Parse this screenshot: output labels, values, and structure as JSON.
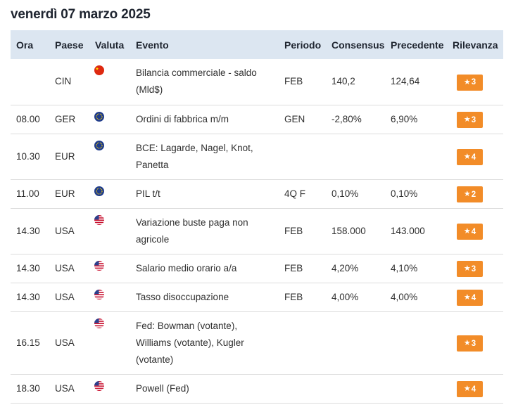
{
  "date_title": "venerdì 07 marzo 2025",
  "columns": {
    "ora": "Ora",
    "paese": "Paese",
    "valuta": "Valuta",
    "evento": "Evento",
    "periodo": "Periodo",
    "consensus": "Consensus",
    "precedente": "Precedente",
    "rilevanza": "Rilevanza"
  },
  "rows": [
    {
      "ora": "",
      "paese": "CIN",
      "flag": "china-flag-icon",
      "evento_lines": [
        "Bilancia commerciale - saldo",
        "(Mld$)"
      ],
      "periodo": "FEB",
      "consensus": "140,2",
      "precedente": "124,64",
      "rilevanza": "3"
    },
    {
      "ora": "08.00",
      "paese": "GER",
      "flag": "eu-flag-icon",
      "evento_lines": [
        "Ordini di fabbrica m/m"
      ],
      "periodo": "GEN",
      "consensus": "-2,80%",
      "precedente": "6,90%",
      "rilevanza": "3"
    },
    {
      "ora": "10.30",
      "paese": "EUR",
      "flag": "eu-flag-icon",
      "evento_lines": [
        "BCE: Lagarde, Nagel, Knot,",
        "Panetta"
      ],
      "periodo": "",
      "consensus": "",
      "precedente": "",
      "rilevanza": "4"
    },
    {
      "ora": "11.00",
      "paese": "EUR",
      "flag": "eu-flag-icon",
      "evento_lines": [
        "PIL t/t"
      ],
      "periodo": "4Q F",
      "consensus": "0,10%",
      "precedente": "0,10%",
      "rilevanza": "2"
    },
    {
      "ora": "14.30",
      "paese": "USA",
      "flag": "us-flag-icon",
      "evento_lines": [
        "Variazione buste paga non",
        "agricole"
      ],
      "periodo": "FEB",
      "consensus": "158.000",
      "precedente": "143.000",
      "rilevanza": "4"
    },
    {
      "ora": "14.30",
      "paese": "USA",
      "flag": "us-flag-icon",
      "evento_lines": [
        "Salario medio orario a/a"
      ],
      "periodo": "FEB",
      "consensus": "4,20%",
      "precedente": "4,10%",
      "rilevanza": "3"
    },
    {
      "ora": "14.30",
      "paese": "USA",
      "flag": "us-flag-icon",
      "evento_lines": [
        "Tasso disoccupazione"
      ],
      "periodo": "FEB",
      "consensus": "4,00%",
      "precedente": "4,00%",
      "rilevanza": "4"
    },
    {
      "ora": "16.15",
      "paese": "USA",
      "flag": "us-flag-icon",
      "evento_lines": [
        "Fed: Bowman (votante),",
        "Williams (votante), Kugler",
        "(votante)"
      ],
      "periodo": "",
      "consensus": "",
      "precedente": "",
      "rilevanza": "3"
    },
    {
      "ora": "18.30",
      "paese": "USA",
      "flag": "us-flag-icon",
      "evento_lines": [
        "Powell (Fed)"
      ],
      "periodo": "",
      "consensus": "",
      "precedente": "",
      "rilevanza": "4"
    }
  ],
  "colors": {
    "header_bg": "#dce6f1",
    "badge_bg": "#f28c28",
    "row_border": "#dcdcdc"
  }
}
